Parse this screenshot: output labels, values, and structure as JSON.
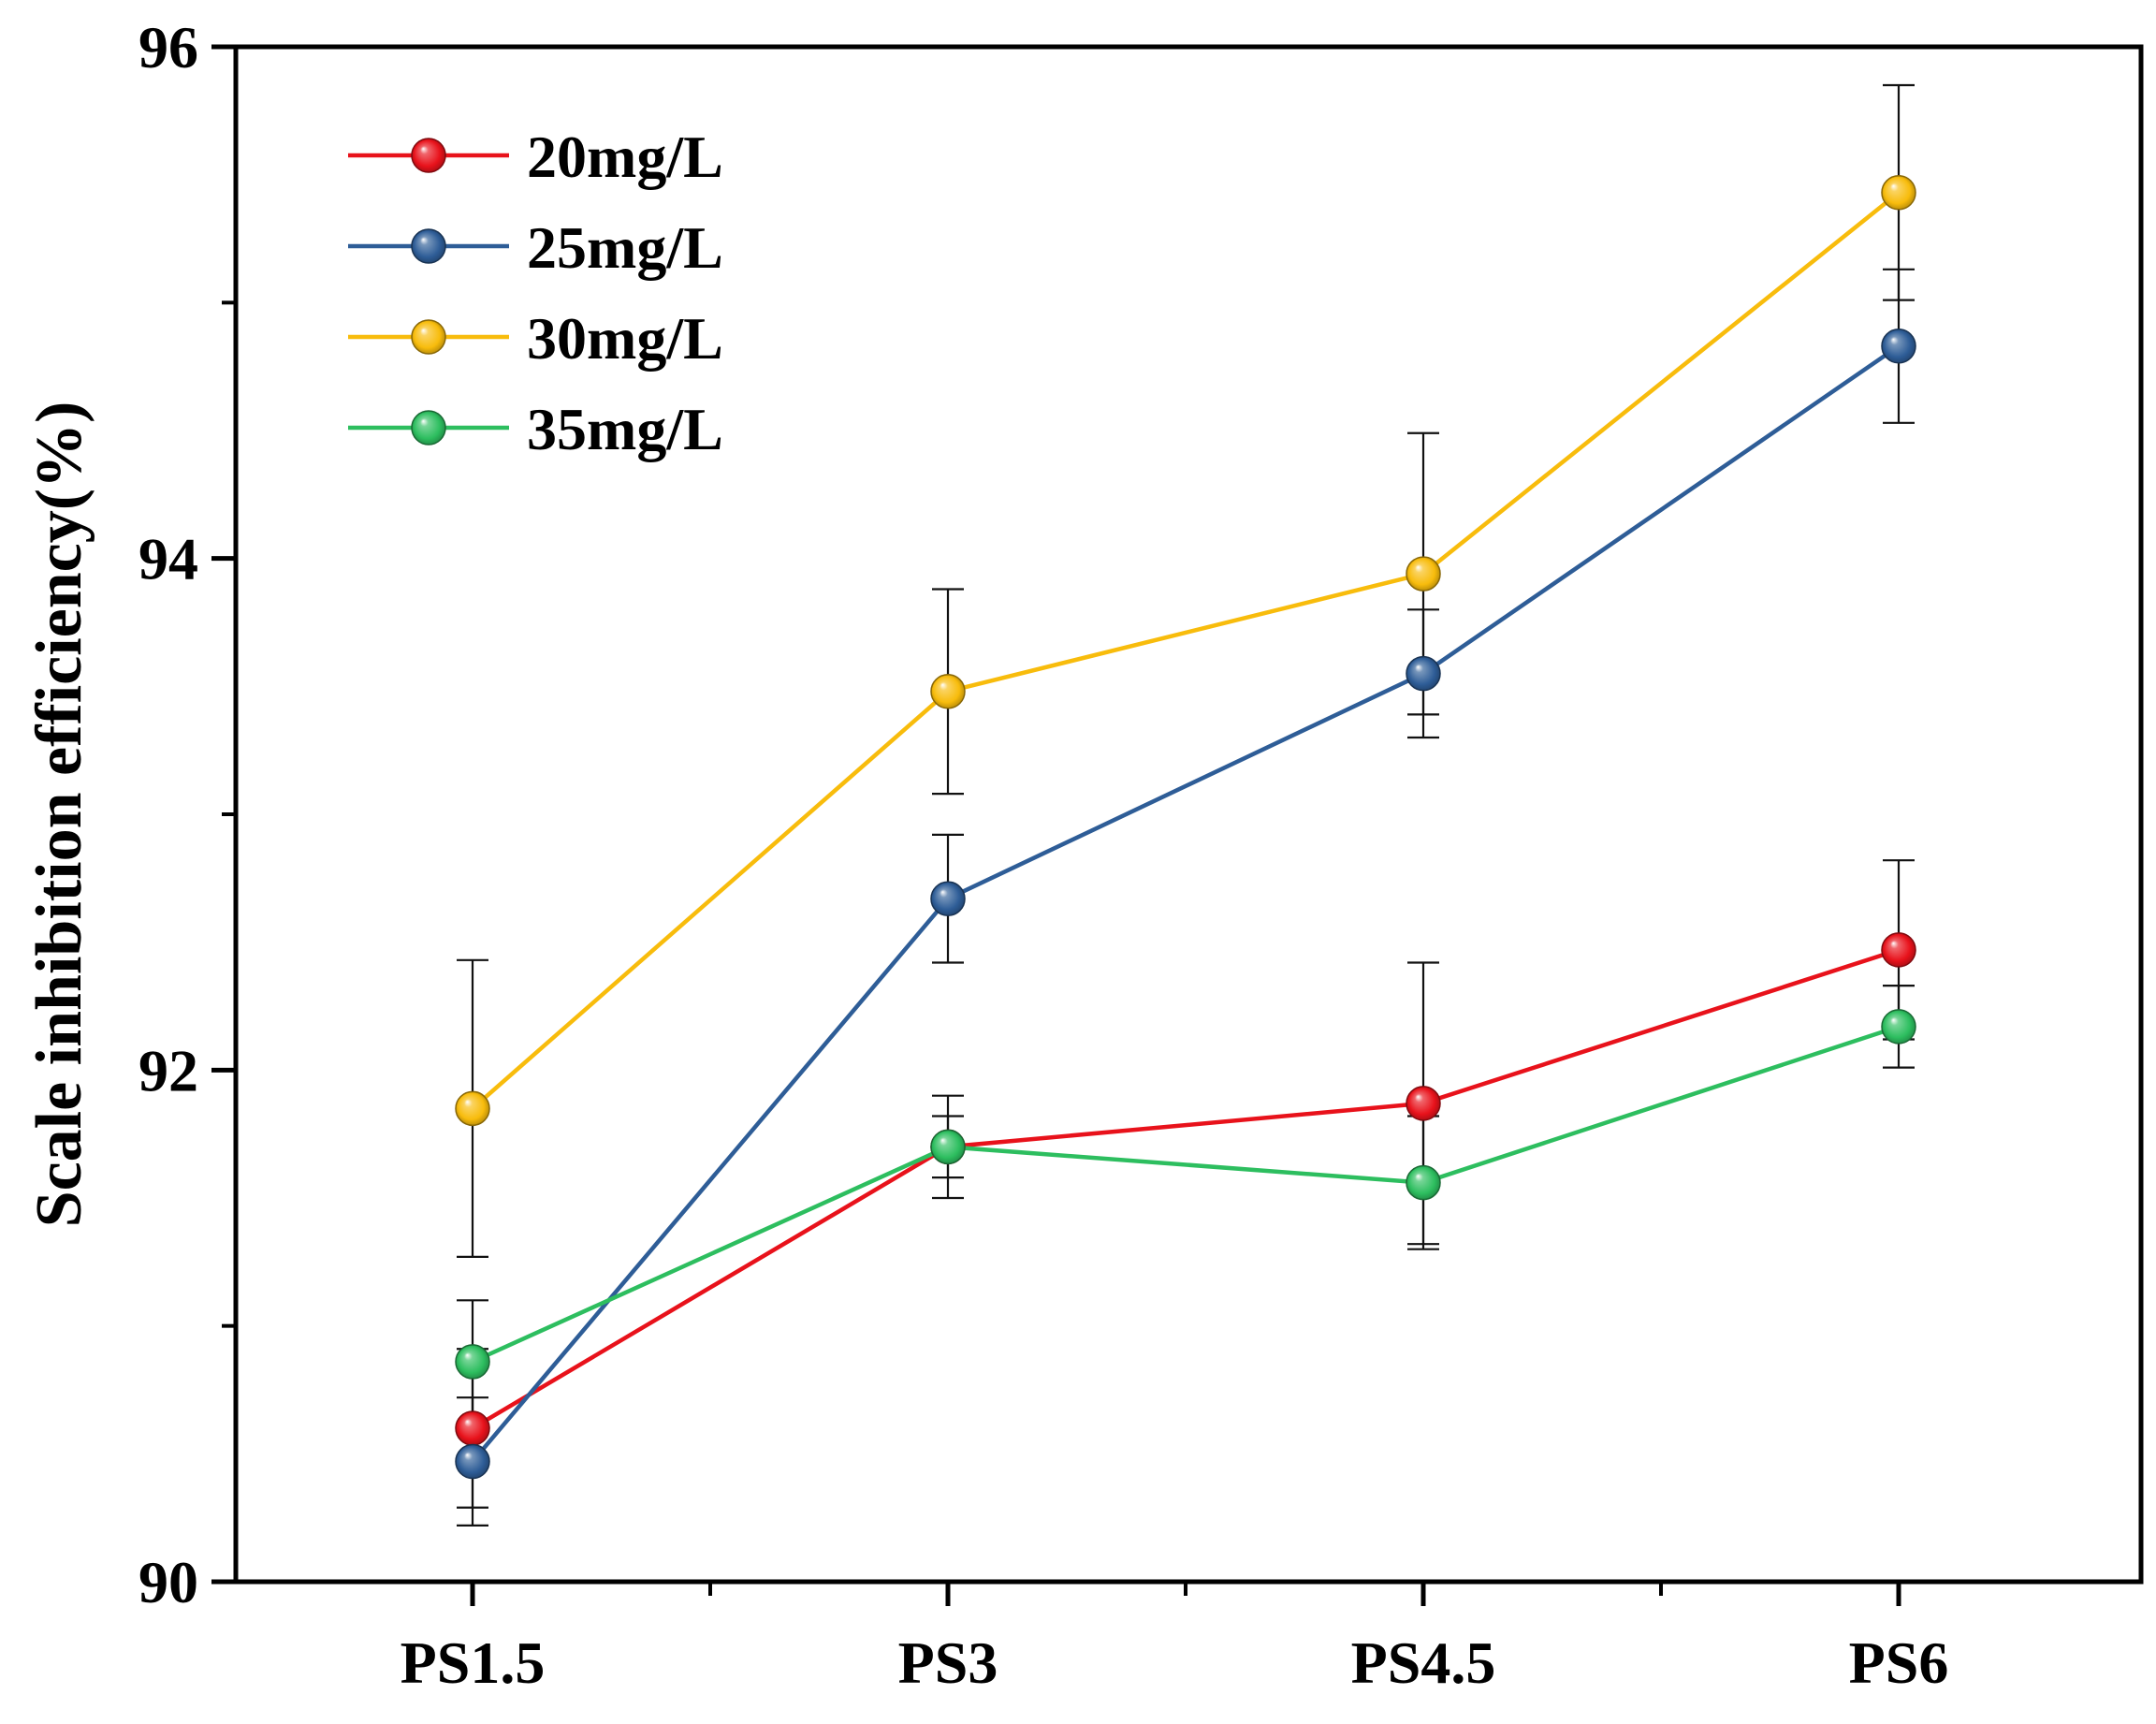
{
  "chart_data": {
    "type": "line",
    "title": "",
    "xlabel": "",
    "ylabel": "Scale inhibition efficiency(%)",
    "categories": [
      "PS1.5",
      "PS3",
      "PS4.5",
      "PS6"
    ],
    "ylim": [
      90,
      96
    ],
    "yticks": [
      90,
      92,
      94,
      96
    ],
    "grid": false,
    "legend_position": "top-left",
    "error_bars": true,
    "series": [
      {
        "name": "20mg/L",
        "color": "#e8121b",
        "values": [
          90.6,
          91.7,
          91.87,
          92.47
        ],
        "errors": [
          0.31,
          0.12,
          0.55,
          0.35
        ]
      },
      {
        "name": "25mg/L",
        "color": "#2e5d97",
        "values": [
          90.47,
          92.67,
          93.55,
          94.83
        ],
        "errors": [
          0.25,
          0.25,
          0.25,
          0.3
        ]
      },
      {
        "name": "30mg/L",
        "color": "#f8bc0c",
        "values": [
          91.85,
          93.48,
          93.94,
          95.43
        ],
        "errors": [
          0.58,
          0.4,
          0.55,
          0.42
        ]
      },
      {
        "name": "35mg/L",
        "color": "#2dbe5f",
        "values": [
          90.86,
          91.7,
          91.56,
          92.17
        ],
        "errors": [
          0.24,
          0.2,
          0.26,
          0.16
        ]
      }
    ]
  }
}
